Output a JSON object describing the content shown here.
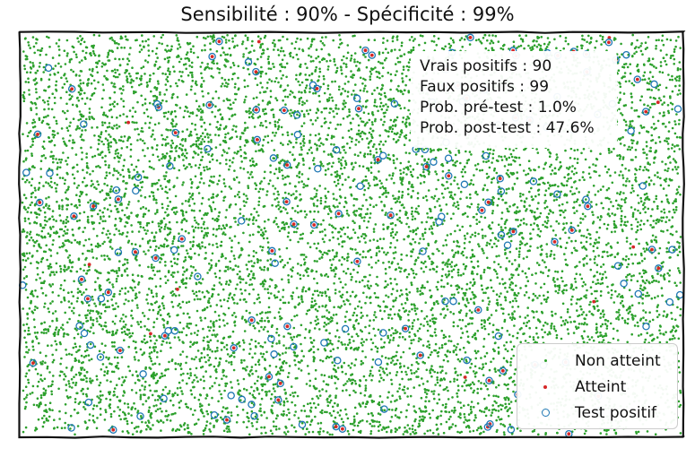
{
  "chart_data": {
    "type": "scatter",
    "title": "Sensibilité : 90% - Spécificité : 99%",
    "xlabel": "",
    "ylabel": "",
    "xlim": [
      0,
      1
    ],
    "ylim": [
      0,
      1
    ],
    "grid": false,
    "legend_placement": "bottom-right",
    "series": [
      {
        "name": "Non atteint",
        "color": "#2ca02c",
        "count": 9900,
        "marker": "dot"
      },
      {
        "name": "Atteint",
        "color": "#d62728",
        "count": 100,
        "marker": "dot"
      },
      {
        "name": "Test positif",
        "color": "#1f77b4",
        "count": 189,
        "marker": "ring"
      }
    ],
    "annotations": [
      "Vrais positifs : 90",
      "Faux positifs : 99",
      "Prob. pré-test : 1.0%",
      "Prob. post-test : 47.6%"
    ]
  }
}
